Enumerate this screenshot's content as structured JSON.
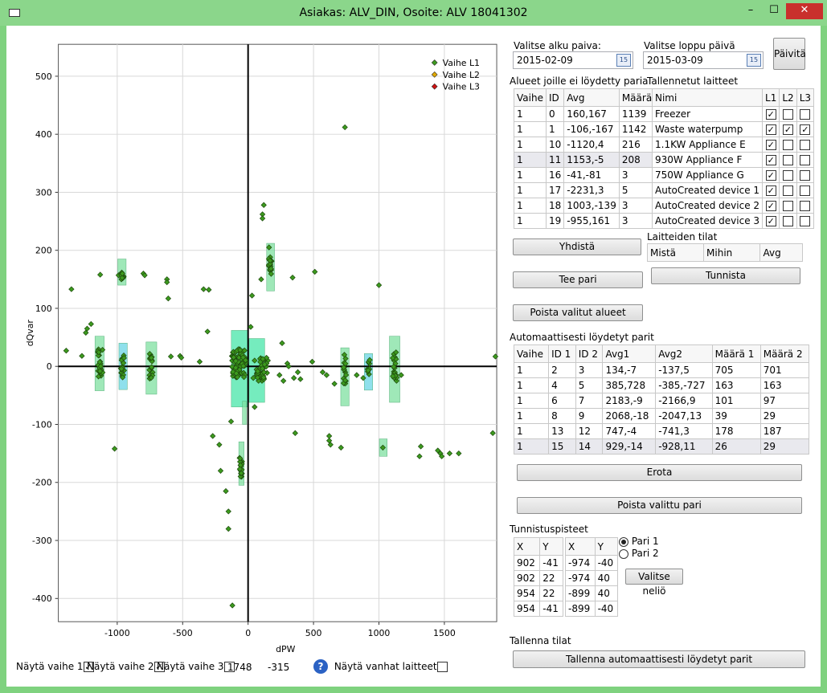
{
  "window": {
    "title": "Asiakas: ALV_DIN, Osoite: ALV 18041302",
    "min": "–",
    "max": "☐",
    "close": "✕"
  },
  "chart_data": {
    "type": "scatter",
    "xlabel": "dPW",
    "ylabel": "dQvar",
    "xlim": [
      -1450,
      1900
    ],
    "ylim": [
      -440,
      555
    ],
    "xticks": [
      -1000,
      -500,
      0,
      500,
      1000,
      1500
    ],
    "yticks": [
      -400,
      -300,
      -200,
      -100,
      0,
      100,
      200,
      300,
      400,
      500
    ],
    "grid": true,
    "legend_position": "top-right",
    "series": [
      {
        "name": "Vaihe L1",
        "color": "#3c9a1e"
      },
      {
        "name": "Vaihe L2",
        "color": "#e0a800"
      },
      {
        "name": "Vaihe L3",
        "color": "#cc1111"
      }
    ],
    "points": [
      [
        -1390,
        27
      ],
      [
        -1350,
        133
      ],
      [
        -1270,
        18
      ],
      [
        -1240,
        58
      ],
      [
        -1230,
        65
      ],
      [
        -1200,
        73
      ],
      [
        -1130,
        158
      ],
      [
        -1020,
        -142
      ],
      [
        -990,
        157
      ],
      [
        -950,
        155
      ],
      [
        -800,
        160
      ],
      [
        -790,
        157
      ],
      [
        -620,
        150
      ],
      [
        -620,
        145
      ],
      [
        -610,
        117
      ],
      [
        -590,
        17
      ],
      [
        -520,
        18
      ],
      [
        -510,
        15
      ],
      [
        -370,
        8
      ],
      [
        -340,
        133
      ],
      [
        -310,
        60
      ],
      [
        -300,
        132
      ],
      [
        -270,
        -120
      ],
      [
        -220,
        -135
      ],
      [
        -210,
        -180
      ],
      [
        -170,
        -215
      ],
      [
        -150,
        -250
      ],
      [
        -150,
        -280
      ],
      [
        -120,
        -412
      ],
      [
        -130,
        -95
      ],
      [
        20,
        68
      ],
      [
        30,
        122
      ],
      [
        40,
        -20
      ],
      [
        50,
        -70
      ],
      [
        50,
        10
      ],
      [
        100,
        150
      ],
      [
        110,
        262
      ],
      [
        110,
        255
      ],
      [
        120,
        278
      ],
      [
        160,
        205
      ],
      [
        240,
        -15
      ],
      [
        260,
        40
      ],
      [
        270,
        -25
      ],
      [
        300,
        5
      ],
      [
        310,
        0
      ],
      [
        340,
        153
      ],
      [
        350,
        -20
      ],
      [
        360,
        -115
      ],
      [
        380,
        -10
      ],
      [
        400,
        -22
      ],
      [
        490,
        8
      ],
      [
        510,
        163
      ],
      [
        570,
        -10
      ],
      [
        600,
        -15
      ],
      [
        620,
        -120
      ],
      [
        620,
        -128
      ],
      [
        630,
        -135
      ],
      [
        660,
        -30
      ],
      [
        710,
        -140
      ],
      [
        740,
        412
      ],
      [
        830,
        -15
      ],
      [
        880,
        -20
      ],
      [
        1000,
        140
      ],
      [
        1030,
        -140
      ],
      [
        1170,
        -15
      ],
      [
        1310,
        -155
      ],
      [
        1320,
        -138
      ],
      [
        1450,
        -145
      ],
      [
        1470,
        -150
      ],
      [
        1480,
        -155
      ],
      [
        1540,
        -150
      ],
      [
        1610,
        -150
      ],
      [
        1870,
        -115
      ],
      [
        1890,
        17
      ]
    ],
    "clusters": [
      {
        "x": -1130,
        "y": 5,
        "n": 25,
        "sx": 20,
        "sy": 25
      },
      {
        "x": -960,
        "y": 0,
        "n": 18,
        "sx": 14,
        "sy": 20
      },
      {
        "x": -740,
        "y": 0,
        "n": 18,
        "sx": 14,
        "sy": 22
      },
      {
        "x": -960,
        "y": 162,
        "n": 8,
        "sx": 12,
        "sy": 12
      },
      {
        "x": -70,
        "y": 5,
        "n": 70,
        "sx": 55,
        "sy": 25
      },
      {
        "x": 110,
        "y": -5,
        "n": 50,
        "sx": 45,
        "sy": 20
      },
      {
        "x": 170,
        "y": 175,
        "n": 20,
        "sx": 12,
        "sy": 18
      },
      {
        "x": -55,
        "y": -175,
        "n": 16,
        "sx": 10,
        "sy": 18
      },
      {
        "x": 740,
        "y": -5,
        "n": 16,
        "sx": 10,
        "sy": 25
      },
      {
        "x": 920,
        "y": 0,
        "n": 10,
        "sx": 10,
        "sy": 14
      },
      {
        "x": 1120,
        "y": 0,
        "n": 22,
        "sx": 16,
        "sy": 25
      }
    ],
    "boxes": [
      {
        "x": [
          -1170,
          -1100
        ],
        "y": [
          -42,
          52
        ],
        "fill": "#7fe0a0"
      },
      {
        "x": [
          -987,
          -923
        ],
        "y": [
          -40,
          40
        ],
        "fill": "#6ad6e6"
      },
      {
        "x": [
          -780,
          -698
        ],
        "y": [
          -48,
          42
        ],
        "fill": "#7fe0a0"
      },
      {
        "x": [
          -996,
          -932
        ],
        "y": [
          140,
          185
        ],
        "fill": "#7fe0a0"
      },
      {
        "x": [
          -128,
          2
        ],
        "y": [
          -70,
          62
        ],
        "fill": "#47e5a8"
      },
      {
        "x": [
          7,
          127
        ],
        "y": [
          -62,
          48
        ],
        "fill": "#47e5a8"
      },
      {
        "x": [
          142,
          202
        ],
        "y": [
          130,
          212
        ],
        "fill": "#7fe0a0"
      },
      {
        "x": [
          -71,
          -31
        ],
        "y": [
          -205,
          -130
        ],
        "fill": "#7fe0a0"
      },
      {
        "x": [
          -43,
          -13
        ],
        "y": [
          -100,
          -60
        ],
        "fill": "#7fe0a0"
      },
      {
        "x": [
          708,
          772
        ],
        "y": [
          -68,
          32
        ],
        "fill": "#7fe0a0"
      },
      {
        "x": [
          888,
          952
        ],
        "y": [
          -41,
          22
        ],
        "fill": "#6ad6e6"
      },
      {
        "x": [
          1080,
          1160
        ],
        "y": [
          -62,
          52
        ],
        "fill": "#7fe0a0"
      },
      {
        "x": [
          1003,
          1063
        ],
        "y": [
          -155,
          -125
        ],
        "fill": "#7fe0a0"
      }
    ]
  },
  "bottom": {
    "show_l1": "Näytä vaihe 1",
    "show_l1_checked": "✓",
    "show_l2": "Näytä vaihe 2",
    "show_l2_checked": "✓",
    "show_l3": "Näytä vaihe 3",
    "show_l3_checked": "",
    "coord_x": "1748",
    "coord_y": "-315",
    "help": "?",
    "show_old": "Näytä vanhat laitteet",
    "show_old_checked": ""
  },
  "dates": {
    "start_label": "Valitse alku paiva:",
    "start_value": "2015-02-09",
    "end_label": "Valitse loppu päivä",
    "end_value": "2015-03-09",
    "cal_icon": "15",
    "refresh": "Päivitä"
  },
  "unpaired": {
    "title": "Alueet joille ei löydetty paria",
    "headers": [
      "Vaihe",
      "ID",
      "Avg",
      "Määrä"
    ],
    "rows": [
      [
        "1",
        "0",
        "160,167",
        "1139"
      ],
      [
        "1",
        "1",
        "-106,-167",
        "1142"
      ],
      [
        "1",
        "10",
        "-1120,4",
        "216"
      ],
      [
        "1",
        "11",
        "1153,-5",
        "208"
      ],
      [
        "1",
        "16",
        "-41,-81",
        "3"
      ],
      [
        "1",
        "17",
        "-2231,3",
        "5"
      ],
      [
        "1",
        "18",
        "1003,-139",
        "3"
      ],
      [
        "1",
        "19",
        "-955,161",
        "3"
      ]
    ]
  },
  "devices": {
    "title": "Tallennetut laitteet",
    "headers": [
      "Nimi",
      "L1",
      "L2",
      "L3"
    ],
    "rows": [
      [
        "Freezer",
        "✓",
        "",
        ""
      ],
      [
        "Waste waterpump",
        "✓",
        "✓",
        "✓"
      ],
      [
        "1.1KW Appliance E",
        "✓",
        "",
        ""
      ],
      [
        "930W Appliance F",
        "✓",
        "",
        ""
      ],
      [
        "750W Appliance G",
        "✓",
        "",
        ""
      ],
      [
        "AutoCreated device 1",
        "✓",
        "",
        ""
      ],
      [
        "AutoCreated device 2",
        "✓",
        "",
        ""
      ],
      [
        "AutoCreated device 3",
        "✓",
        "",
        ""
      ]
    ]
  },
  "actions": {
    "combine": "Yhdistä",
    "make_pair": "Tee pari",
    "remove_areas": "Poista valitut alueet",
    "identify": "Tunnista"
  },
  "states": {
    "title": "Laitteiden tilat",
    "headers": [
      "Mistä",
      "Mihin",
      "Avg"
    ]
  },
  "auto_pairs": {
    "title": "Automaattisesti löydetyt parit",
    "headers": [
      "Vaihe",
      "ID 1",
      "ID 2",
      "Avg1",
      "Avg2",
      "Määrä 1",
      "Määrä 2"
    ],
    "rows": [
      [
        "1",
        "2",
        "3",
        "134,-7",
        "-137,5",
        "705",
        "701"
      ],
      [
        "1",
        "4",
        "5",
        "385,728",
        "-385,-727",
        "163",
        "163"
      ],
      [
        "1",
        "6",
        "7",
        "2183,-9",
        "-2166,9",
        "101",
        "97"
      ],
      [
        "1",
        "8",
        "9",
        "2068,-18",
        "-2047,13",
        "39",
        "29"
      ],
      [
        "1",
        "13",
        "12",
        "747,-4",
        "-741,3",
        "178",
        "187"
      ],
      [
        "1",
        "15",
        "14",
        "929,-14",
        "-928,11",
        "26",
        "29"
      ]
    ],
    "separate": "Erota",
    "remove_pair": "Poista valittu pari"
  },
  "points_panel": {
    "title": "Tunnistuspisteet",
    "headers": [
      "X",
      "Y"
    ],
    "left": [
      [
        "902",
        "-41"
      ],
      [
        "902",
        "22"
      ],
      [
        "954",
        "22"
      ],
      [
        "954",
        "-41"
      ]
    ],
    "right": [
      [
        "-974",
        "-40"
      ],
      [
        "-974",
        "40"
      ],
      [
        "-899",
        "40"
      ],
      [
        "-899",
        "-40"
      ]
    ],
    "pair1": "Pari 1",
    "pair2": "Pari 2",
    "select_square": "Valitse neliö"
  },
  "save": {
    "title": "Tallenna tilat",
    "save_pairs": "Tallenna automaattisesti löydetyt parit"
  }
}
